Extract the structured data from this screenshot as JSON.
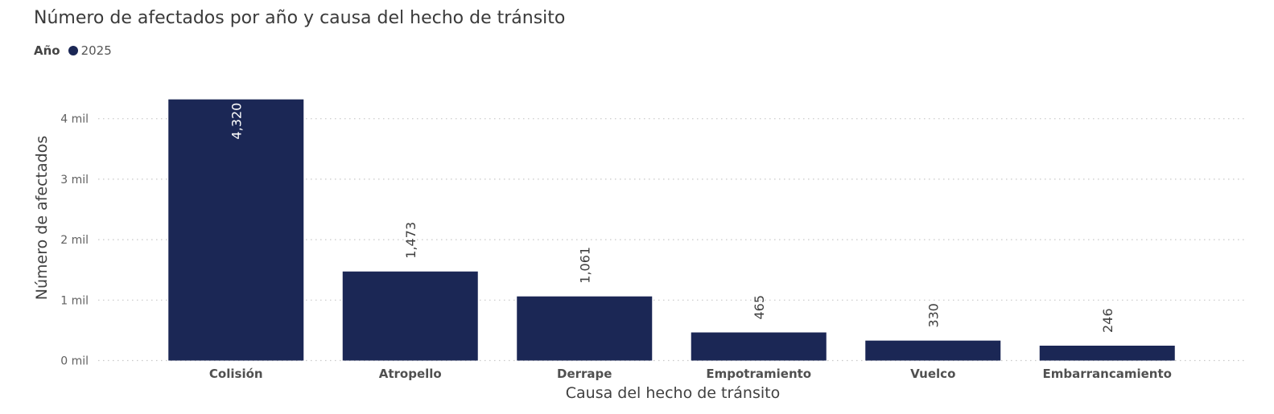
{
  "chart_data": {
    "type": "bar",
    "title": "Número de afectados por año y causa del hecho de tránsito",
    "legend": {
      "title": "Año",
      "position": "top-left",
      "items": [
        {
          "name": "2025",
          "color": "#1b2755"
        }
      ]
    },
    "xlabel": "Causa del hecho de tránsito",
    "ylabel": "Número de afectados",
    "categories": [
      "Colisión",
      "Atropello",
      "Derrape",
      "Empotramiento",
      "Vuelco",
      "Embarrancamiento"
    ],
    "series": [
      {
        "name": "2025",
        "color": "#1b2755",
        "values": [
          4320,
          1473,
          1061,
          465,
          330,
          246
        ]
      }
    ],
    "data_labels": [
      "4,320",
      "1,473",
      "1,061",
      "465",
      "330",
      "246"
    ],
    "yticks": [
      0,
      1000,
      2000,
      3000,
      4000
    ],
    "ytick_labels": [
      "0 mil",
      "1 mil",
      "2 mil",
      "3 mil",
      "4 mil"
    ],
    "ylim": [
      0,
      4500
    ],
    "grid": "horizontal-dotted"
  }
}
